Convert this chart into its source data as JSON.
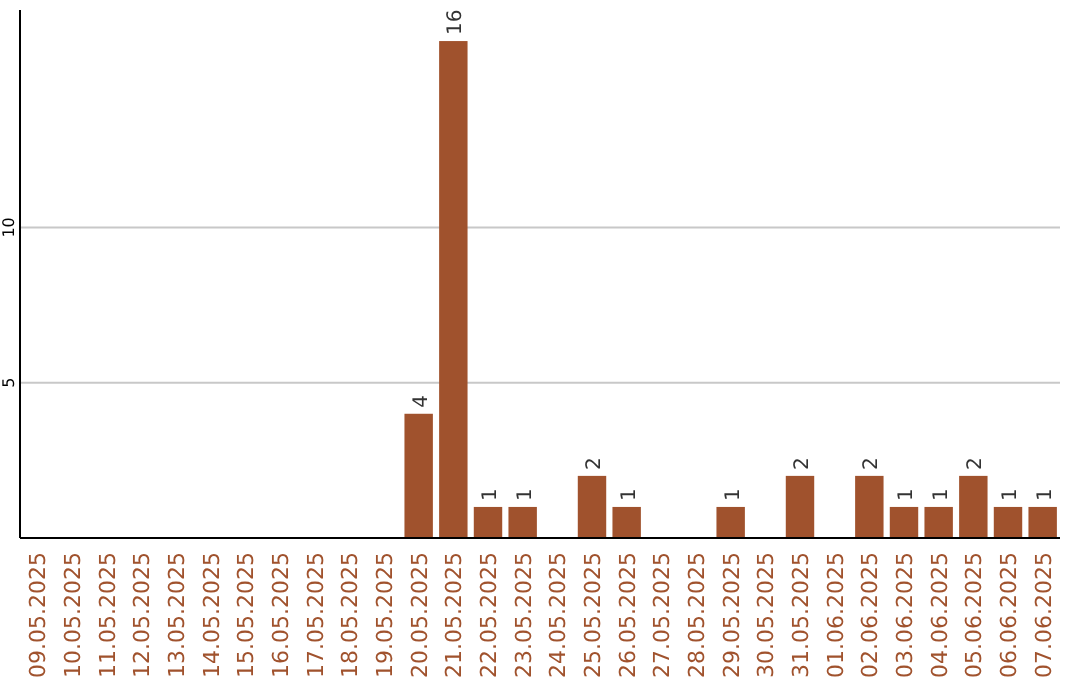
{
  "chart_data": {
    "type": "bar",
    "categories": [
      "09.05.2025",
      "10.05.2025",
      "11.05.2025",
      "12.05.2025",
      "13.05.2025",
      "14.05.2025",
      "15.05.2025",
      "16.05.2025",
      "17.05.2025",
      "18.05.2025",
      "19.05.2025",
      "20.05.2025",
      "21.05.2025",
      "22.05.2025",
      "23.05.2025",
      "24.05.2025",
      "25.05.2025",
      "26.05.2025",
      "27.05.2025",
      "28.05.2025",
      "29.05.2025",
      "30.05.2025",
      "31.05.2025",
      "01.06.2025",
      "02.06.2025",
      "03.06.2025",
      "04.06.2025",
      "05.06.2025",
      "06.06.2025",
      "07.06.2025"
    ],
    "values": [
      0,
      0,
      0,
      0,
      0,
      0,
      0,
      0,
      0,
      0,
      0,
      4,
      16,
      1,
      1,
      0,
      2,
      1,
      0,
      0,
      1,
      0,
      2,
      0,
      2,
      1,
      1,
      2,
      1,
      1
    ],
    "value_labels": [
      null,
      null,
      null,
      null,
      null,
      null,
      null,
      null,
      null,
      null,
      null,
      "4",
      "16",
      "1",
      "1",
      null,
      "2",
      "1",
      null,
      null,
      "1",
      null,
      "2",
      null,
      "2",
      "1",
      "1",
      "2",
      "1",
      "1"
    ],
    "color": "#a0522d",
    "ylim": [
      0,
      17
    ],
    "yticks": [
      5,
      10
    ],
    "grid": "y"
  }
}
